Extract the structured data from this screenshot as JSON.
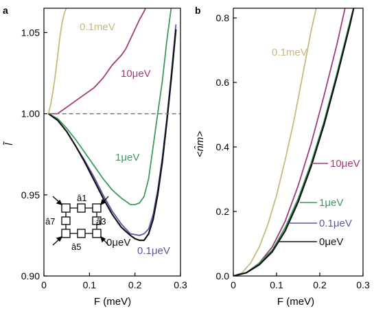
{
  "chart_data": [
    {
      "panel": "a",
      "type": "line",
      "xlabel": "F (meV)",
      "ylabel": "l̃",
      "xlim": [
        0,
        0.3
      ],
      "ylim": [
        0.9,
        1.065
      ],
      "xticks": [
        0,
        0.1,
        0.2,
        0.3
      ],
      "xtick_labels": [
        "0",
        "0.1",
        "0.2",
        "0.3"
      ],
      "yticks": [
        0.9,
        0.95,
        1.0,
        1.05
      ],
      "ytick_labels": [
        "0.90",
        "0.95",
        "1.00",
        "1.05"
      ],
      "reference_line": {
        "y": 1.0,
        "style": "dashed"
      },
      "series": [
        {
          "name": "0.1meV",
          "color": "#c7b97f",
          "x": [
            0.01,
            0.015,
            0.02,
            0.025,
            0.03,
            0.035,
            0.04,
            0.045,
            0.05
          ],
          "y": [
            1.0,
            1.006,
            1.014,
            1.024,
            1.035,
            1.047,
            1.056,
            1.062,
            1.066
          ]
        },
        {
          "name": "10μeV",
          "color": "#9e3c78",
          "x": [
            0.01,
            0.03,
            0.05,
            0.07,
            0.09,
            0.11,
            0.13,
            0.15,
            0.17,
            0.18,
            0.19,
            0.2,
            0.21,
            0.22,
            0.225
          ],
          "y": [
            1.0,
            1.0,
            1.004,
            1.008,
            1.012,
            1.016,
            1.022,
            1.03,
            1.036,
            1.04,
            1.046,
            1.052,
            1.058,
            1.063,
            1.066
          ]
        },
        {
          "name": "1μeV",
          "color": "#3a9b5c",
          "x": [
            0.01,
            0.03,
            0.05,
            0.07,
            0.09,
            0.11,
            0.13,
            0.15,
            0.17,
            0.19,
            0.2,
            0.21,
            0.22,
            0.23,
            0.24,
            0.25,
            0.26,
            0.27,
            0.28
          ],
          "y": [
            1.0,
            0.997,
            0.991,
            0.984,
            0.976,
            0.968,
            0.96,
            0.953,
            0.948,
            0.944,
            0.944,
            0.945,
            0.949,
            0.96,
            0.98,
            1.0,
            1.02,
            1.045,
            1.066
          ]
        },
        {
          "name": "0.1μeV",
          "color": "#5559a8",
          "x": [
            0.01,
            0.03,
            0.05,
            0.07,
            0.09,
            0.11,
            0.13,
            0.15,
            0.17,
            0.19,
            0.21,
            0.22,
            0.23,
            0.24,
            0.25,
            0.26,
            0.27,
            0.28,
            0.29
          ],
          "y": [
            1.0,
            0.996,
            0.989,
            0.98,
            0.971,
            0.961,
            0.95,
            0.94,
            0.932,
            0.926,
            0.925,
            0.926,
            0.929,
            0.938,
            0.953,
            0.973,
            0.997,
            1.025,
            1.055
          ]
        },
        {
          "name": "0μeV",
          "color": "#111111",
          "x": [
            0.01,
            0.03,
            0.05,
            0.07,
            0.09,
            0.11,
            0.13,
            0.15,
            0.17,
            0.19,
            0.2,
            0.21,
            0.22,
            0.23,
            0.24,
            0.25,
            0.26,
            0.27,
            0.28,
            0.29
          ],
          "y": [
            1.0,
            0.996,
            0.989,
            0.98,
            0.97,
            0.959,
            0.948,
            0.938,
            0.93,
            0.925,
            0.923,
            0.922,
            0.922,
            0.926,
            0.935,
            0.95,
            0.97,
            0.995,
            1.022,
            1.052
          ]
        }
      ],
      "annotations": [
        "0.1meV",
        "10μeV",
        "1μeV",
        "0μeV",
        "0.1μeV"
      ]
    },
    {
      "panel": "b",
      "type": "line",
      "xlabel": "F (meV)",
      "ylabel": "<n̂m>",
      "xlim": [
        0,
        0.3
      ],
      "ylim": [
        0,
        0.83
      ],
      "xticks": [
        0,
        0.1,
        0.2,
        0.3
      ],
      "xtick_labels": [
        "0",
        "0.1",
        "0.2",
        "0.3"
      ],
      "yticks": [
        0,
        0.2,
        0.4,
        0.6,
        0.8
      ],
      "ytick_labels": [
        "0.0",
        "0.2",
        "0.4",
        "0.6",
        "0.8"
      ],
      "series": [
        {
          "name": "0.1meV",
          "color": "#c7b97f",
          "x": [
            0,
            0.02,
            0.04,
            0.06,
            0.08,
            0.1,
            0.12,
            0.14,
            0.16,
            0.18,
            0.2
          ],
          "y": [
            0,
            0.01,
            0.04,
            0.09,
            0.16,
            0.25,
            0.36,
            0.48,
            0.62,
            0.76,
            0.88
          ]
        },
        {
          "name": "10μeV",
          "color": "#9e3c78",
          "x": [
            0,
            0.03,
            0.06,
            0.09,
            0.12,
            0.15,
            0.18,
            0.21,
            0.24,
            0.27
          ],
          "y": [
            0,
            0.01,
            0.04,
            0.09,
            0.17,
            0.28,
            0.41,
            0.56,
            0.72,
            0.9
          ]
        },
        {
          "name": "1μeV",
          "color": "#3a9b5c",
          "x": [
            0,
            0.03,
            0.06,
            0.09,
            0.12,
            0.15,
            0.18,
            0.21,
            0.24,
            0.27,
            0.28
          ],
          "y": [
            0,
            0.01,
            0.04,
            0.08,
            0.15,
            0.24,
            0.35,
            0.48,
            0.63,
            0.79,
            0.84
          ]
        },
        {
          "name": "0.1μeV",
          "color": "#5559a8",
          "x": [
            0,
            0.03,
            0.06,
            0.09,
            0.12,
            0.15,
            0.18,
            0.21,
            0.24,
            0.27,
            0.28
          ],
          "y": [
            0,
            0.01,
            0.035,
            0.075,
            0.14,
            0.23,
            0.34,
            0.47,
            0.62,
            0.78,
            0.84
          ]
        },
        {
          "name": "0μeV",
          "color": "#111111",
          "x": [
            0,
            0.03,
            0.06,
            0.09,
            0.12,
            0.15,
            0.18,
            0.21,
            0.24,
            0.27,
            0.28
          ],
          "y": [
            0,
            0.01,
            0.035,
            0.075,
            0.14,
            0.23,
            0.34,
            0.47,
            0.62,
            0.78,
            0.84
          ]
        }
      ],
      "annotations": [
        "0.1meV",
        "10μeV",
        "1μeV",
        "0.1μeV",
        "0μeV"
      ]
    }
  ],
  "panel_letters": {
    "a": "a",
    "b": "b"
  },
  "inset": {
    "label_a1": "â1",
    "label_a3": "â3",
    "label_a5": "â5",
    "label_a7": "â7"
  }
}
